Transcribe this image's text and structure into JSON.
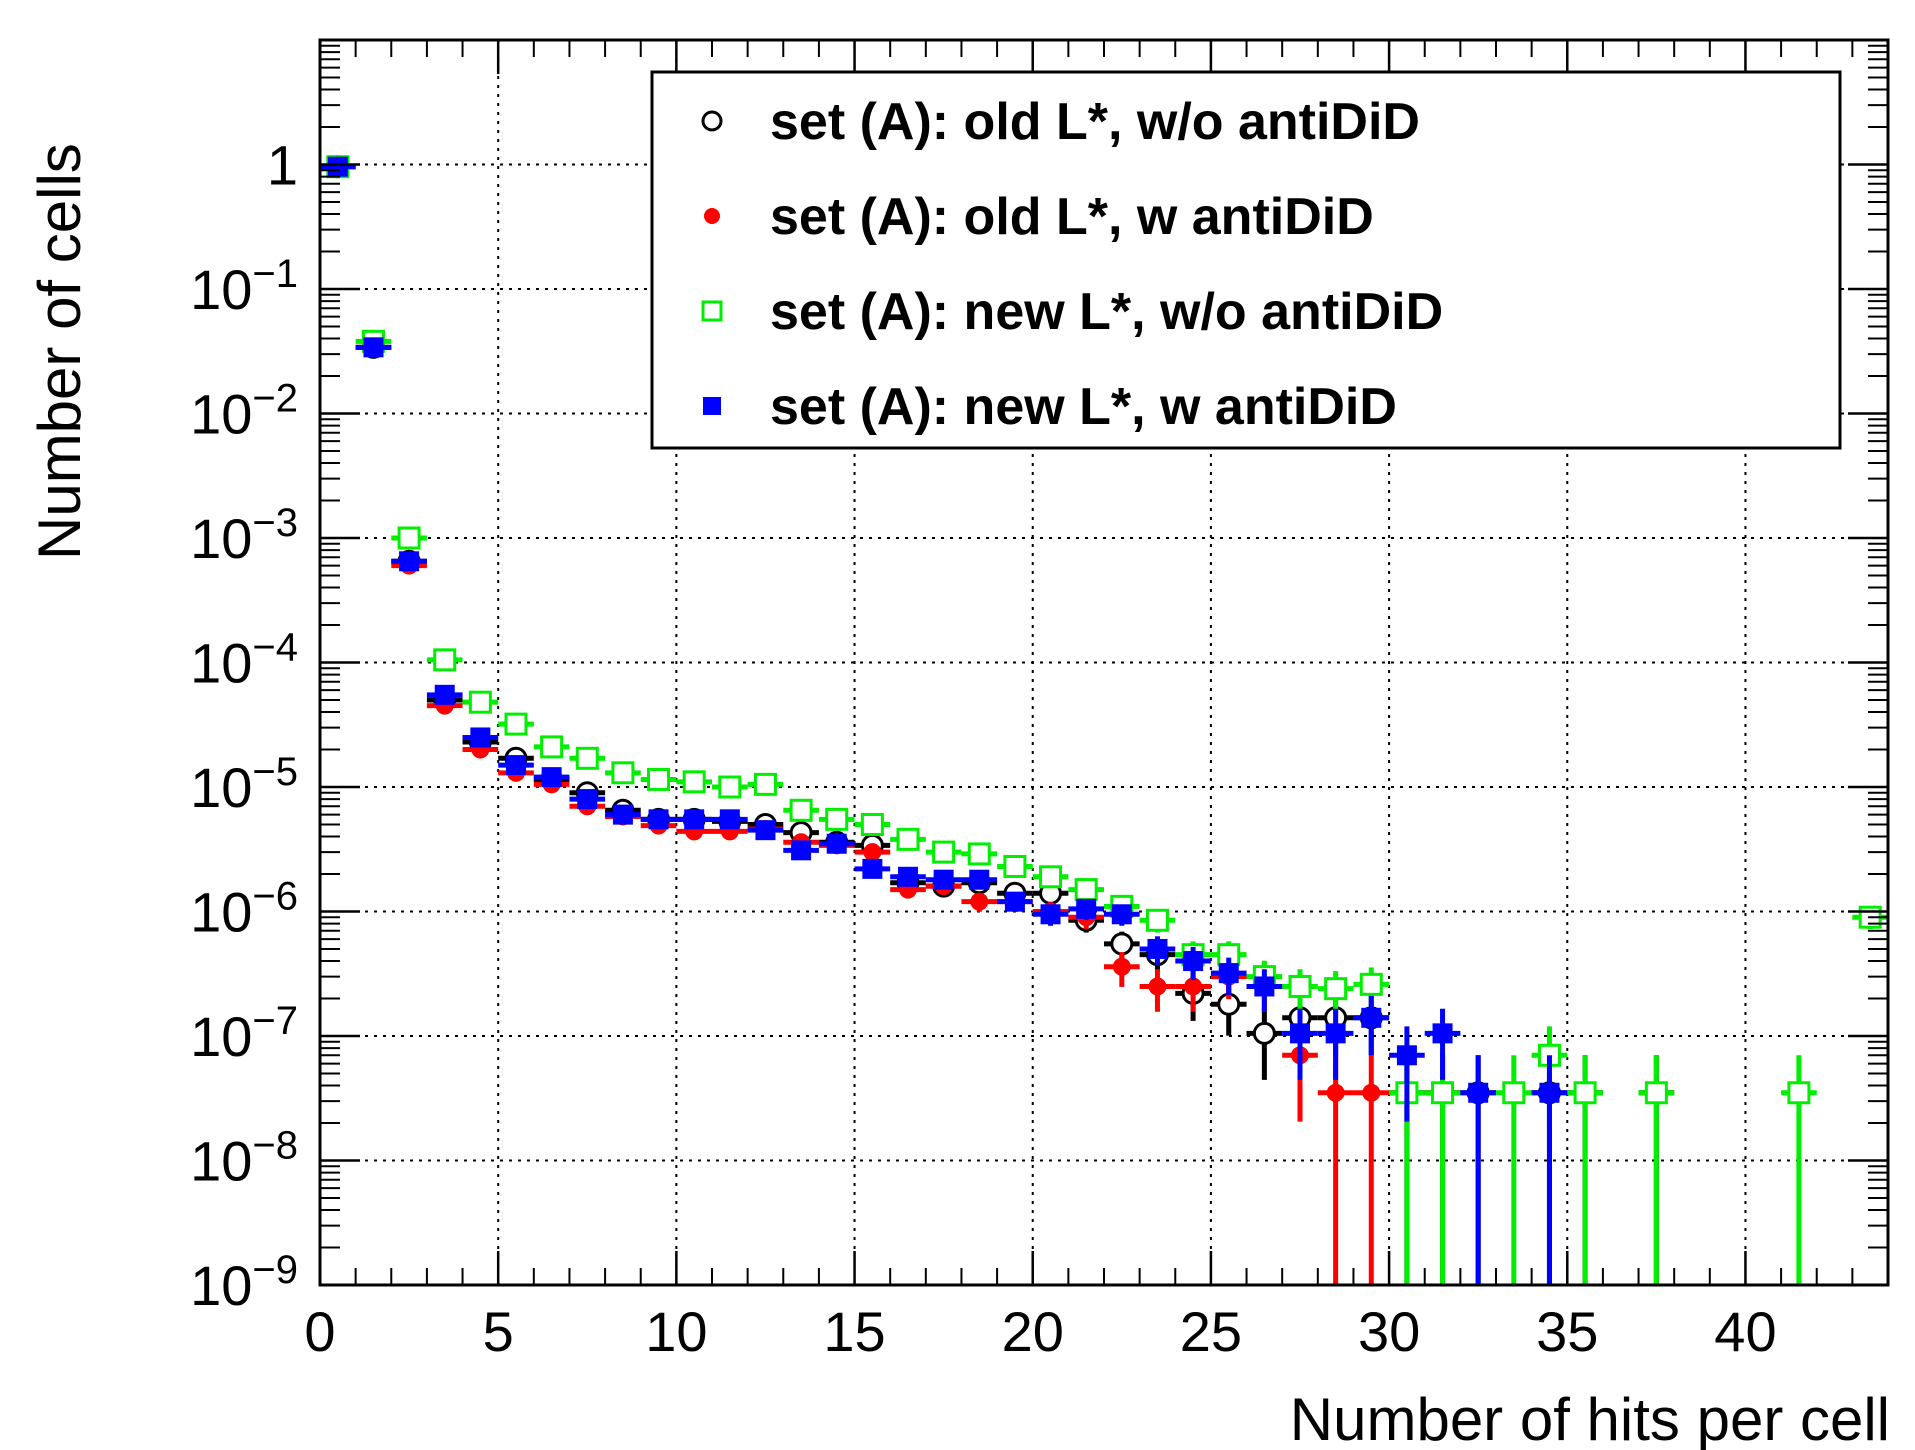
{
  "chart_data": {
    "type": "scatter",
    "title": "",
    "xlabel": "Number of hits per cell",
    "ylabel": "Number of cells",
    "xlim": [
      0,
      44
    ],
    "ylim": [
      1e-09,
      10
    ],
    "y_scale": "log",
    "grid": true,
    "legend_position": "top-right",
    "x_ticks": [
      0,
      5,
      10,
      15,
      20,
      25,
      30,
      35,
      40
    ],
    "x_tick_labels": [
      "0",
      "5",
      "10",
      "15",
      "20",
      "25",
      "30",
      "35",
      "40"
    ],
    "y_ticks": [
      1,
      0.1,
      0.01,
      0.001,
      0.0001,
      1e-05,
      1e-06,
      1e-07,
      1e-08,
      1e-09
    ],
    "y_tick_labels": [
      {
        "base": "1",
        "exp": ""
      },
      {
        "base": "10",
        "exp": "−1"
      },
      {
        "base": "10",
        "exp": "−2"
      },
      {
        "base": "10",
        "exp": "−3"
      },
      {
        "base": "10",
        "exp": "−4"
      },
      {
        "base": "10",
        "exp": "−5"
      },
      {
        "base": "10",
        "exp": "−6"
      },
      {
        "base": "10",
        "exp": "−7"
      },
      {
        "base": "10",
        "exp": "−8"
      },
      {
        "base": "10",
        "exp": "−9"
      }
    ],
    "series": [
      {
        "name": "set (A): old L*, w/o antiDiD",
        "color": "#000000",
        "marker": "open-circle",
        "x": [
          0.5,
          1.5,
          2.5,
          3.5,
          4.5,
          5.5,
          6.5,
          7.5,
          8.5,
          9.5,
          10.5,
          11.5,
          12.5,
          13.5,
          14.5,
          15.5,
          16.5,
          17.5,
          18.5,
          19.5,
          20.5,
          21.5,
          22.5,
          23.5,
          24.5,
          25.5,
          26.5,
          27.5,
          28.5,
          29.5,
          30.5,
          31.5,
          32.5,
          34.5,
          35.5,
          37.5
        ],
        "y": [
          0.96,
          0.034,
          0.00065,
          5e-05,
          2.3e-05,
          1.7e-05,
          1.15e-05,
          9e-06,
          6.5e-06,
          5.5e-06,
          5.5e-06,
          5.3e-06,
          5e-06,
          4.3e-06,
          3.6e-06,
          3.4e-06,
          1.7e-06,
          1.6e-06,
          1.7e-06,
          1.4e-06,
          1.4e-06,
          8.5e-07,
          5.5e-07,
          4.5e-07,
          2.2e-07,
          1.8e-07,
          1.05e-07,
          1.4e-07,
          1.4e-07,
          1.4e-07,
          3.5e-08,
          3.5e-08,
          3.5e-08,
          3.5e-08,
          3.5e-08,
          3.5e-08
        ]
      },
      {
        "name": "set (A): old L*, w antiDiD",
        "color": "#ff0000",
        "marker": "filled-circle",
        "x": [
          0.5,
          1.5,
          2.5,
          3.5,
          4.5,
          5.5,
          6.5,
          7.5,
          8.5,
          9.5,
          10.5,
          11.5,
          12.5,
          13.5,
          14.5,
          15.5,
          16.5,
          17.5,
          18.5,
          19.5,
          20.5,
          21.5,
          22.5,
          23.5,
          24.5,
          25.5,
          26.5,
          27.5,
          28.5,
          29.5,
          31.5
        ],
        "y": [
          0.96,
          0.034,
          0.0006,
          4.5e-05,
          2e-05,
          1.3e-05,
          1.05e-05,
          7e-06,
          5.8e-06,
          4.9e-06,
          4.4e-06,
          4.4e-06,
          4.6e-06,
          3.6e-06,
          3.4e-06,
          3e-06,
          1.5e-06,
          1.6e-06,
          1.2e-06,
          1.2e-06,
          1e-06,
          9e-07,
          3.6e-07,
          2.5e-07,
          2.5e-07,
          3e-07,
          2.5e-07,
          7e-08,
          3.5e-08,
          3.5e-08,
          3.5e-08
        ]
      },
      {
        "name": "set (A): new L*, w/o antiDiD",
        "color": "#00ee00",
        "marker": "open-square",
        "x": [
          0.5,
          1.5,
          2.5,
          3.5,
          4.5,
          5.5,
          6.5,
          7.5,
          8.5,
          9.5,
          10.5,
          11.5,
          12.5,
          13.5,
          14.5,
          15.5,
          16.5,
          17.5,
          18.5,
          19.5,
          20.5,
          21.5,
          22.5,
          23.5,
          24.5,
          25.5,
          26.5,
          27.5,
          28.5,
          29.5,
          30.5,
          31.5,
          33.5,
          34.5,
          35.5,
          37.5,
          41.5,
          43.5
        ],
        "y": [
          0.96,
          0.038,
          0.001,
          0.000105,
          4.8e-05,
          3.2e-05,
          2.1e-05,
          1.7e-05,
          1.3e-05,
          1.15e-05,
          1.1e-05,
          1e-05,
          1.05e-05,
          6.5e-06,
          5.5e-06,
          5e-06,
          3.8e-06,
          3e-06,
          2.9e-06,
          2.3e-06,
          1.9e-06,
          1.5e-06,
          1.1e-06,
          8.5e-07,
          4.5e-07,
          4.5e-07,
          3e-07,
          2.5e-07,
          2.4e-07,
          2.6e-07,
          3.5e-08,
          3.5e-08,
          3.5e-08,
          7e-08,
          3.5e-08,
          3.5e-08,
          3.5e-08,
          9e-07
        ]
      },
      {
        "name": "set (A): new L*, w antiDiD",
        "color": "#0000ff",
        "marker": "filled-square",
        "x": [
          0.5,
          1.5,
          2.5,
          3.5,
          4.5,
          5.5,
          6.5,
          7.5,
          8.5,
          9.5,
          10.5,
          11.5,
          12.5,
          13.5,
          14.5,
          15.5,
          16.5,
          17.5,
          18.5,
          19.5,
          20.5,
          21.5,
          22.5,
          23.5,
          24.5,
          25.5,
          26.5,
          27.5,
          28.5,
          29.5,
          30.5,
          31.5,
          32.5,
          34.5
        ],
        "y": [
          0.96,
          0.034,
          0.00065,
          5.5e-05,
          2.5e-05,
          1.5e-05,
          1.2e-05,
          8e-06,
          6e-06,
          5.5e-06,
          5.5e-06,
          5.5e-06,
          4.5e-06,
          3.1e-06,
          3.5e-06,
          2.2e-06,
          1.9e-06,
          1.8e-06,
          1.8e-06,
          1.2e-06,
          9.5e-07,
          1.05e-06,
          9.5e-07,
          5e-07,
          4e-07,
          3.2e-07,
          2.5e-07,
          1.05e-07,
          1.05e-07,
          1.4e-07,
          7e-08,
          1.05e-07,
          3.5e-08,
          3.5e-08
        ]
      }
    ]
  }
}
